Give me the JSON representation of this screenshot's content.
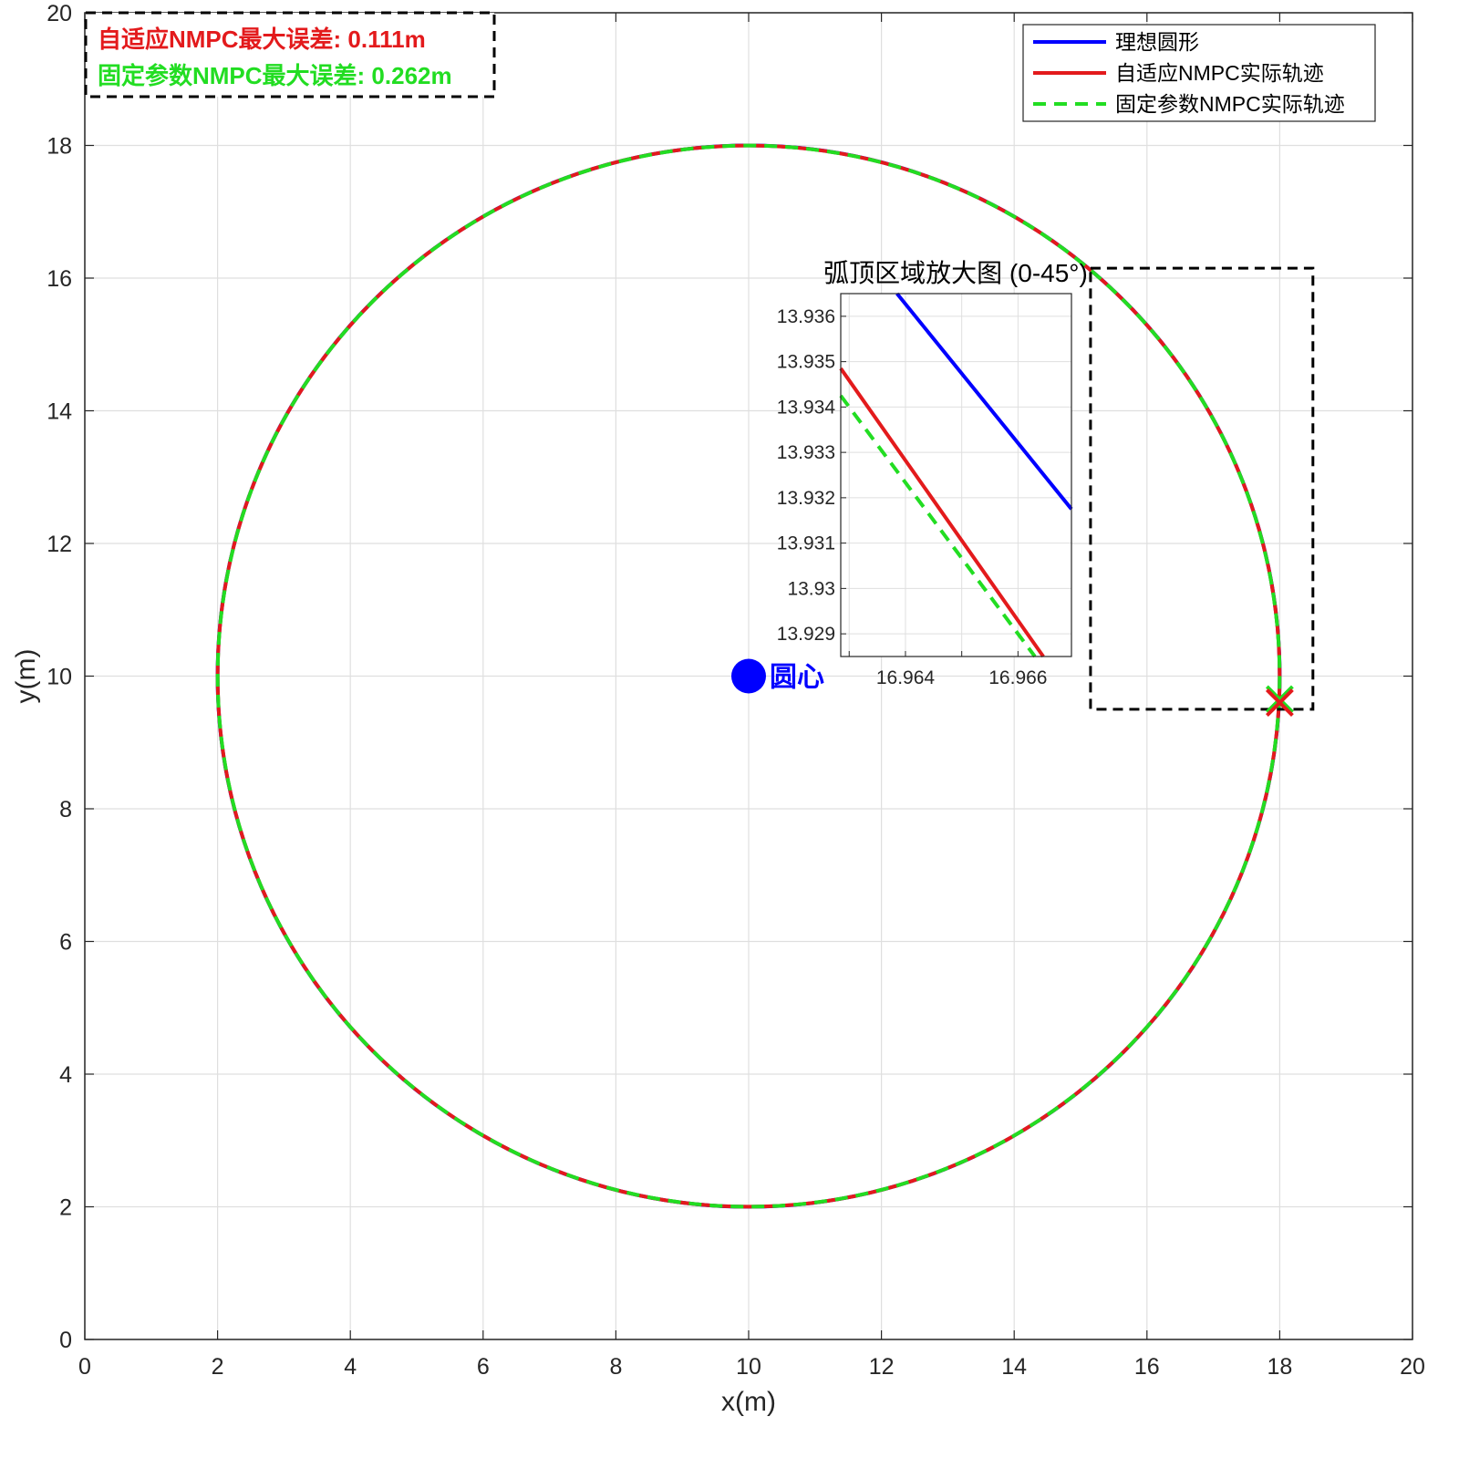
{
  "chart_data": {
    "type": "line",
    "xlabel": "x(m)",
    "ylabel": "y(m)",
    "xlim": [
      0,
      20
    ],
    "ylim": [
      0,
      20
    ],
    "xticks": [
      "0",
      "2",
      "4",
      "6",
      "8",
      "10",
      "12",
      "14",
      "16",
      "18",
      "20"
    ],
    "yticks": [
      "0",
      "2",
      "4",
      "6",
      "8",
      "10",
      "12",
      "14",
      "16",
      "18",
      "20"
    ],
    "grid": true,
    "circle": {
      "center": [
        10,
        10
      ],
      "radius": 8
    },
    "series": [
      {
        "name": "理想圆形",
        "color": "#0000ff",
        "style": "solid",
        "radius": 8.0
      },
      {
        "name": "自适应NMPC实际轨迹",
        "color": "#e31a1c",
        "style": "solid",
        "radius": 7.999
      },
      {
        "name": "固定参数NMPC实际轨迹",
        "color": "#22dd22",
        "style": "dashed",
        "radius": 7.9985
      }
    ],
    "legend_position": "top-right",
    "center_marker": {
      "label": "圆心",
      "x": 10,
      "y": 10,
      "color": "#0000ff"
    },
    "end_markers": [
      {
        "x": 18.0,
        "y": 9.65,
        "color": "#22dd22",
        "symbol": "x"
      },
      {
        "x": 18.0,
        "y": 9.6,
        "color": "#e31a1c",
        "symbol": "x"
      }
    ],
    "annotations": [
      {
        "text": "自适应NMPC最大误差: 0.111m",
        "color": "#e31a1c"
      },
      {
        "text": "固定参数NMPC最大误差: 0.262m",
        "color": "#22dd22"
      }
    ],
    "zoom_region": {
      "xlim": [
        15.15,
        18.5
      ],
      "ylim": [
        9.5,
        16.15
      ]
    },
    "inset": {
      "title": "弧顶区域放大图 (0-45°)",
      "xlim": [
        16.96285,
        16.96695
      ],
      "ylim": [
        13.9285,
        13.9365
      ],
      "xticks": [
        "16.964",
        "16.966"
      ],
      "xtick_values": [
        16.964,
        16.966
      ],
      "yticks": [
        "13.936",
        "13.935",
        "13.934",
        "13.933",
        "13.932",
        "13.931",
        "13.93",
        "13.929"
      ],
      "ytick_values": [
        13.936,
        13.935,
        13.934,
        13.933,
        13.932,
        13.931,
        13.93,
        13.929
      ],
      "xgrid_values": [
        16.963,
        16.964,
        16.965,
        16.966
      ],
      "series": [
        {
          "name": "理想圆形",
          "color": "#0000ff",
          "style": "solid",
          "x": [
            16.96385,
            16.96695
          ],
          "y": [
            13.9365,
            13.93175
          ]
        },
        {
          "name": "自适应NMPC实际轨迹",
          "color": "#e31a1c",
          "style": "solid",
          "x": [
            16.96285,
            16.96645
          ],
          "y": [
            13.93485,
            13.9285
          ]
        },
        {
          "name": "固定参数NMPC实际轨迹",
          "color": "#22dd22",
          "style": "dashed",
          "x": [
            16.96285,
            16.9663
          ],
          "y": [
            13.93425,
            13.9285
          ]
        }
      ]
    }
  }
}
